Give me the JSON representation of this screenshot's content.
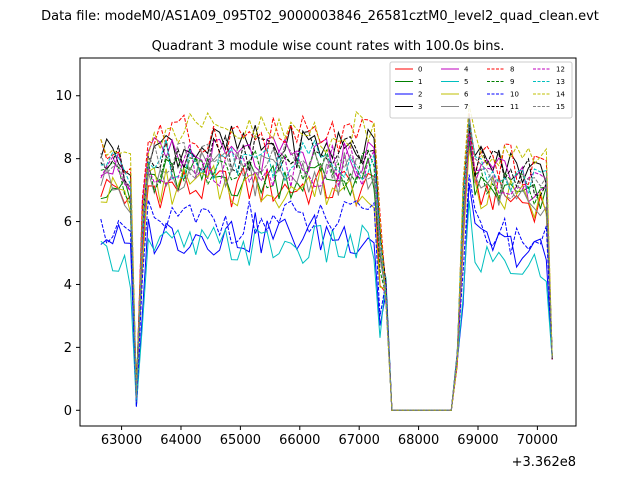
{
  "figure": {
    "suptitle": "Data file: modeM0/AS1A09_095T02_9000003846_26581cztM0_level2_quad_clean.evt"
  },
  "chart_data": {
    "type": "line",
    "title": "Quadrant 3 module wise count rates with 100.0s bins.",
    "xlabel": "",
    "ylabel": "",
    "x_offset_label": "+3.362e8",
    "xlim": [
      62300,
      70650
    ],
    "ylim": [
      -0.5,
      11.2
    ],
    "x_ticks": [
      63000,
      64000,
      65000,
      66000,
      67000,
      68000,
      69000,
      70000
    ],
    "x_tick_labels": [
      "63000",
      "64000",
      "65000",
      "66000",
      "67000",
      "68000",
      "69000",
      "70000"
    ],
    "y_ticks": [
      0,
      2,
      4,
      6,
      8,
      10
    ],
    "y_tick_labels": [
      "0",
      "2",
      "4",
      "6",
      "8",
      "10"
    ],
    "grid": false,
    "legend_position": "top-right",
    "x_segments": [
      {
        "start": 62650,
        "end": 70250,
        "step": 100
      }
    ],
    "series": [
      {
        "name": "0",
        "color": "#ff0000",
        "dash": "solid",
        "level_a": 7.1,
        "level_b": 7.1,
        "level_c": 7.0,
        "dip": 0.2
      },
      {
        "name": "1",
        "color": "#008000",
        "dash": "solid",
        "level_a": 7.2,
        "level_b": 7.4,
        "level_c": 7.1,
        "dip": 0.3
      },
      {
        "name": "2",
        "color": "#0000ff",
        "dash": "solid",
        "level_a": 5.5,
        "level_b": 5.6,
        "level_c": 5.4,
        "dip": 0.0
      },
      {
        "name": "3",
        "color": "#000000",
        "dash": "solid",
        "level_a": 8.3,
        "level_b": 8.4,
        "level_c": 8.0,
        "dip": 0.4
      },
      {
        "name": "4",
        "color": "#bf00bf",
        "dash": "solid",
        "level_a": 7.9,
        "level_b": 8.0,
        "level_c": 7.6,
        "dip": 0.3
      },
      {
        "name": "5",
        "color": "#00bfbf",
        "dash": "solid",
        "level_a": 4.9,
        "level_b": 5.2,
        "level_c": 4.9,
        "dip": 0.0
      },
      {
        "name": "6",
        "color": "#bfbf00",
        "dash": "solid",
        "level_a": 7.0,
        "level_b": 7.1,
        "level_c": 7.0,
        "dip": 0.2
      },
      {
        "name": "7",
        "color": "#808080",
        "dash": "solid",
        "level_a": 7.3,
        "level_b": 7.5,
        "level_c": 7.2,
        "dip": 0.2
      },
      {
        "name": "8",
        "color": "#ff0000",
        "dash": "dashed",
        "level_a": 8.2,
        "level_b": 8.7,
        "level_c": 8.1,
        "dip": 0.4
      },
      {
        "name": "9",
        "color": "#008000",
        "dash": "dashed",
        "level_a": 7.4,
        "level_b": 7.6,
        "level_c": 7.3,
        "dip": 0.3
      },
      {
        "name": "10",
        "color": "#0000ff",
        "dash": "dashed",
        "level_a": 5.8,
        "level_b": 6.0,
        "level_c": 5.8,
        "dip": 0.1
      },
      {
        "name": "11",
        "color": "#000000",
        "dash": "dashed",
        "level_a": 7.9,
        "level_b": 8.2,
        "level_c": 7.8,
        "dip": 0.3
      },
      {
        "name": "12",
        "color": "#bf00bf",
        "dash": "dashed",
        "level_a": 7.6,
        "level_b": 7.8,
        "level_c": 7.4,
        "dip": 0.3
      },
      {
        "name": "13",
        "color": "#00bfbf",
        "dash": "dashed",
        "level_a": 7.8,
        "level_b": 8.0,
        "level_c": 7.7,
        "dip": 0.3
      },
      {
        "name": "14",
        "color": "#bfbf00",
        "dash": "dashed",
        "level_a": 8.5,
        "level_b": 8.8,
        "level_c": 8.4,
        "dip": 0.5
      },
      {
        "name": "15",
        "color": "#808080",
        "dash": "dashed",
        "level_a": 7.7,
        "level_b": 7.9,
        "level_c": 7.5,
        "dip": 0.3
      }
    ],
    "profile_notes": "Rates are near level_a from 62650-63150, drop to near dip at 63250, recover to level_b between 63350 and 67250, fall to about 4 at 67450, are 0 from 67550 to 68550, ramp up at 68650-68750, peak near 9.5-10 at 68850, stay near level_c to 70150 and drop to about 1.6 at 70250."
  }
}
